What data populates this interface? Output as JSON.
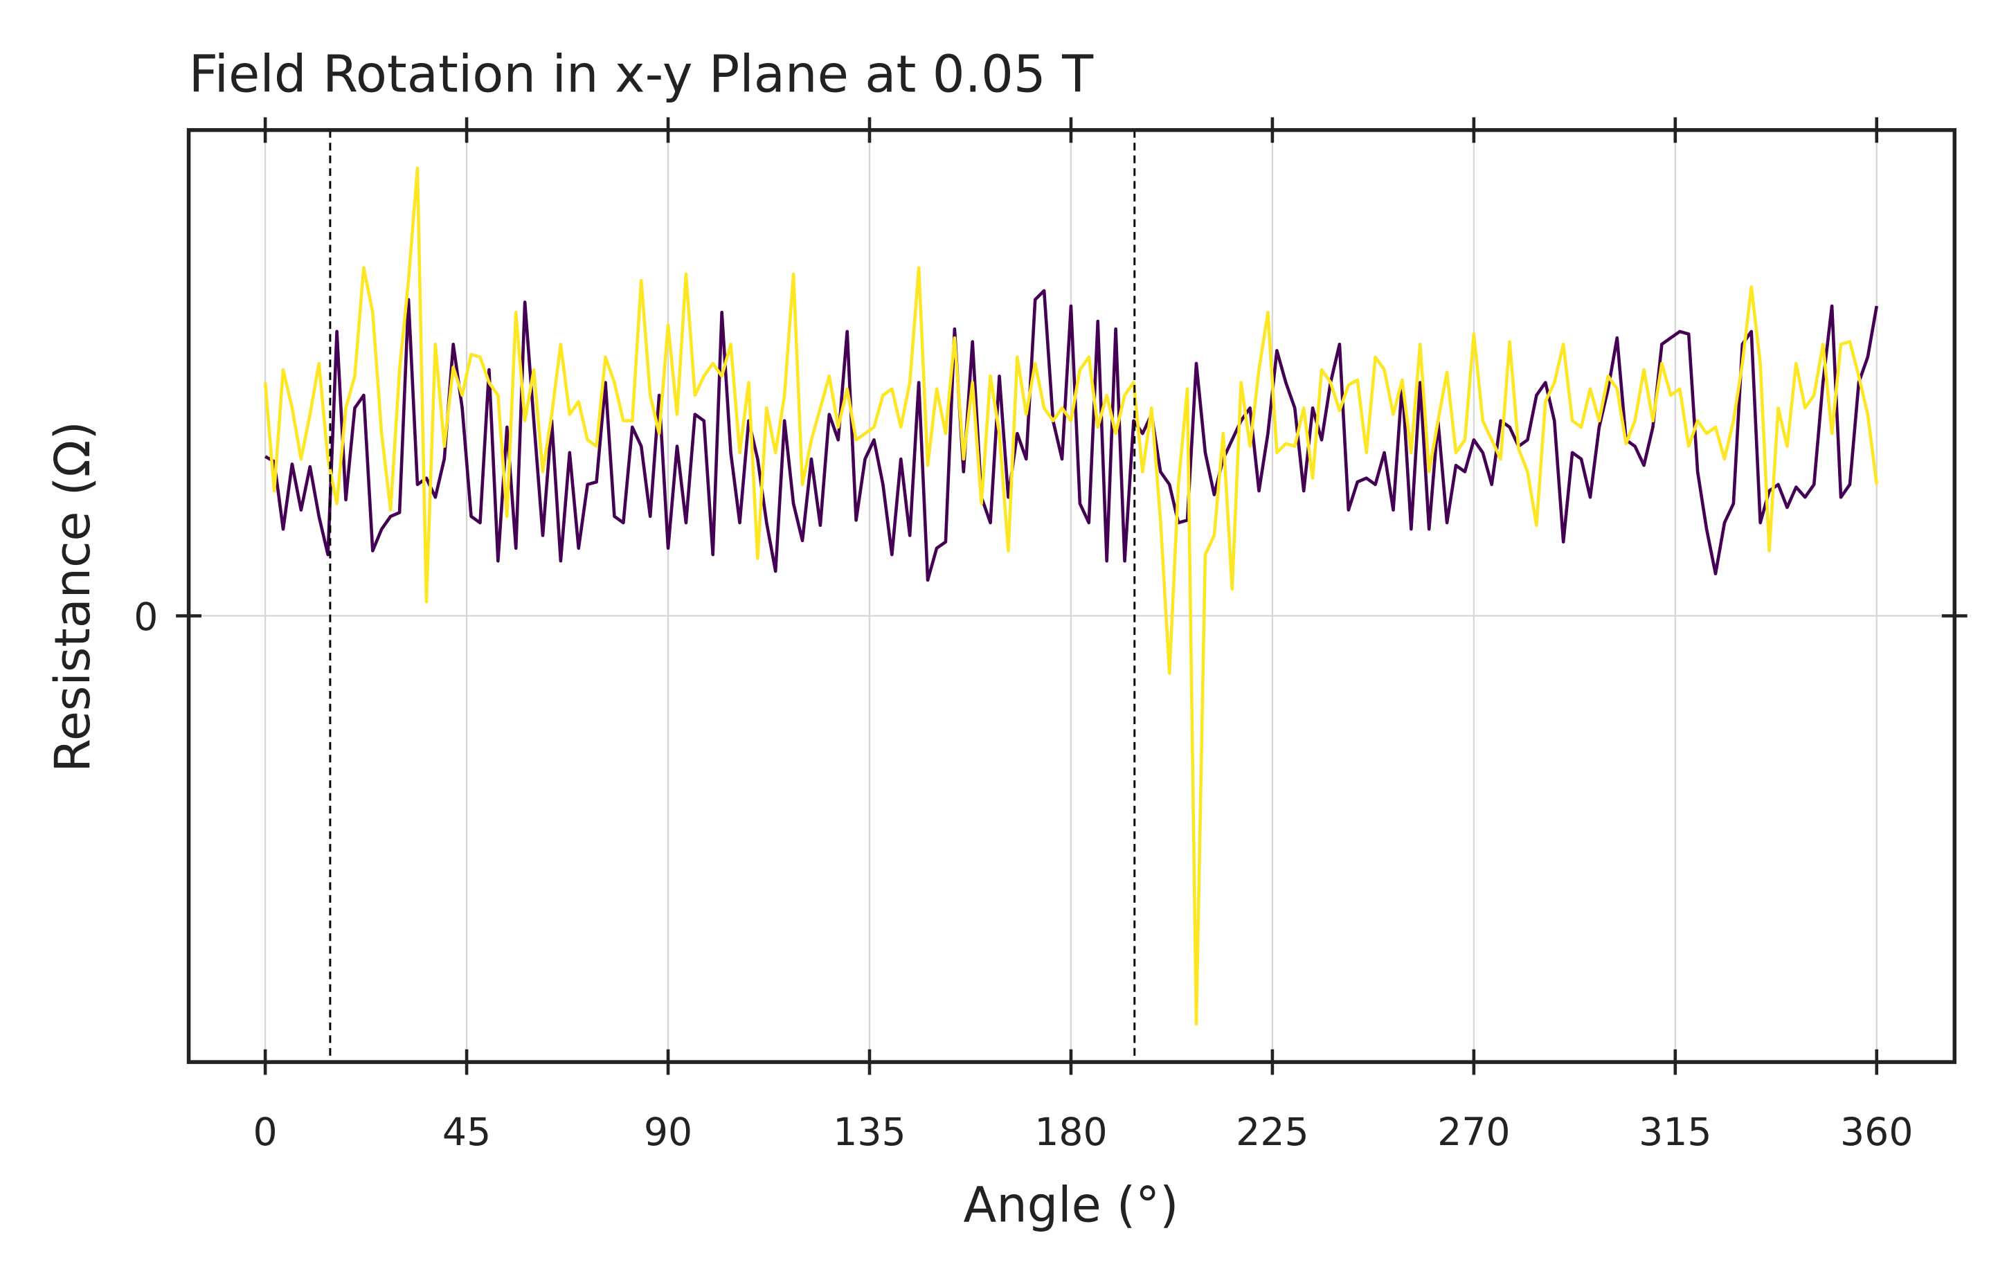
{
  "chart_data": {
    "type": "line",
    "title": "Field Rotation in x-y Plane at 0.05 T",
    "xlabel": "Angle (°)",
    "ylabel": "Resistance (Ω)",
    "xlim": [
      -17.1,
      377.4
    ],
    "ylim": [
      -3.5,
      3.81
    ],
    "xticks": [
      0,
      45,
      90,
      135,
      180,
      225,
      270,
      315,
      360
    ],
    "yticks": [
      0
    ],
    "grid": true,
    "vlines": [
      14.5,
      194.2
    ],
    "x": [
      0,
      2,
      4,
      6,
      8,
      10,
      12,
      14,
      16,
      18,
      20,
      22,
      24,
      26,
      28,
      30,
      32,
      34,
      36,
      38,
      40,
      42,
      44,
      46,
      48,
      50,
      52,
      54,
      56,
      58,
      60,
      62,
      64,
      66,
      68,
      70,
      72,
      74,
      76,
      78,
      80,
      82,
      84,
      86,
      88,
      90,
      92,
      94,
      96,
      98,
      100,
      102,
      104,
      106,
      108,
      110,
      112,
      114,
      116,
      118,
      120,
      122,
      124,
      126,
      128,
      130,
      132,
      134,
      136,
      138,
      140,
      142,
      144,
      146,
      148,
      150,
      152,
      154,
      156,
      158,
      160,
      162,
      164,
      166,
      168,
      170,
      172,
      174,
      176,
      178,
      180,
      182,
      184,
      186,
      188,
      190,
      192,
      194,
      196,
      198,
      200,
      202,
      204,
      206,
      208,
      210,
      212,
      214,
      216,
      218,
      220,
      222,
      224,
      226,
      228,
      230,
      232,
      234,
      236,
      238,
      240,
      242,
      244,
      246,
      248,
      250,
      252,
      254,
      256,
      258,
      260,
      262,
      264,
      266,
      268,
      270,
      272,
      274,
      276,
      278,
      280,
      282,
      284,
      286,
      288,
      290,
      292,
      294,
      296,
      298,
      300,
      302,
      304,
      306,
      308,
      310,
      312,
      314,
      316,
      318,
      320,
      322,
      324,
      326,
      328,
      330,
      332,
      334,
      336,
      338,
      340,
      342,
      344,
      346,
      348,
      350,
      352,
      354,
      356,
      358,
      360
    ],
    "series": [
      {
        "color": "#440154",
        "values": [
          1.25,
          1.21,
          0.68,
          1.19,
          0.83,
          1.17,
          0.78,
          0.48,
          2.23,
          0.91,
          1.63,
          1.73,
          0.51,
          0.68,
          0.78,
          0.81,
          2.48,
          1.03,
          1.08,
          0.93,
          1.23,
          2.13,
          1.63,
          0.78,
          0.73,
          1.93,
          0.43,
          1.48,
          0.53,
          2.46,
          1.53,
          0.63,
          1.53,
          0.43,
          1.28,
          0.53,
          1.03,
          1.05,
          1.83,
          0.78,
          0.73,
          1.48,
          1.33,
          0.78,
          1.73,
          0.53,
          1.33,
          0.73,
          1.58,
          1.53,
          0.48,
          2.38,
          1.28,
          0.73,
          1.53,
          1.23,
          0.73,
          0.35,
          1.53,
          0.88,
          0.59,
          1.23,
          0.71,
          1.58,
          1.38,
          2.23,
          0.75,
          1.23,
          1.38,
          1.03,
          0.48,
          1.23,
          0.63,
          1.83,
          0.28,
          0.53,
          0.58,
          2.25,
          1.13,
          2.15,
          0.93,
          0.73,
          1.88,
          0.93,
          1.43,
          1.23,
          2.48,
          2.55,
          1.53,
          1.23,
          2.43,
          0.88,
          0.73,
          2.31,
          0.43,
          2.25,
          0.43,
          1.53,
          1.43,
          1.58,
          1.13,
          1.03,
          0.73,
          0.75,
          1.98,
          1.28,
          0.95,
          1.23,
          1.38,
          1.53,
          1.63,
          0.98,
          1.43,
          2.08,
          1.83,
          1.63,
          0.98,
          1.63,
          1.38,
          1.83,
          2.13,
          0.83,
          1.05,
          1.08,
          1.03,
          1.28,
          0.83,
          1.83,
          0.68,
          1.83,
          0.68,
          1.53,
          0.73,
          1.18,
          1.13,
          1.38,
          1.28,
          1.03,
          1.53,
          1.48,
          1.33,
          1.38,
          1.73,
          1.83,
          1.53,
          0.58,
          1.28,
          1.23,
          0.93,
          1.48,
          1.78,
          2.18,
          1.38,
          1.33,
          1.18,
          1.48,
          2.13,
          2.18,
          2.23,
          2.21,
          1.13,
          0.68,
          0.33,
          0.73,
          0.88,
          2.13,
          2.23,
          0.73,
          0.98,
          1.03,
          0.85,
          1.01,
          0.93,
          1.03,
          1.83,
          2.43,
          0.93,
          1.03,
          1.83,
          2.03,
          2.43
        ]
      },
      {
        "color": "#fde725",
        "values": [
          1.83,
          0.98,
          1.93,
          1.63,
          1.23,
          1.58,
          1.98,
          1.23,
          0.88,
          1.63,
          1.88,
          2.73,
          2.38,
          1.43,
          0.83,
          1.93,
          2.63,
          3.51,
          0.11,
          2.13,
          1.33,
          1.95,
          1.73,
          2.05,
          2.03,
          1.83,
          1.73,
          0.78,
          2.38,
          1.53,
          1.93,
          1.13,
          1.58,
          2.13,
          1.58,
          1.68,
          1.38,
          1.33,
          2.03,
          1.83,
          1.53,
          1.53,
          2.63,
          1.73,
          1.43,
          2.28,
          1.58,
          2.68,
          1.73,
          1.88,
          1.98,
          1.88,
          2.13,
          1.28,
          1.83,
          0.45,
          1.63,
          1.28,
          1.73,
          2.68,
          1.03,
          1.38,
          1.63,
          1.88,
          1.48,
          1.78,
          1.38,
          1.43,
          1.48,
          1.73,
          1.78,
          1.48,
          1.83,
          2.73,
          1.18,
          1.78,
          1.43,
          2.18,
          1.23,
          1.83,
          0.88,
          1.88,
          1.43,
          0.51,
          2.03,
          1.58,
          1.98,
          1.63,
          1.53,
          1.63,
          1.53,
          1.93,
          2.03,
          1.48,
          1.73,
          1.43,
          1.73,
          1.83,
          1.13,
          1.63,
          0.75,
          -0.45,
          1.03,
          1.78,
          -3.2,
          0.48,
          0.63,
          1.43,
          0.21,
          1.83,
          1.33,
          1.93,
          2.38,
          1.28,
          1.35,
          1.33,
          1.63,
          1.08,
          1.93,
          1.83,
          1.61,
          1.81,
          1.85,
          1.28,
          2.03,
          1.93,
          1.58,
          1.85,
          1.28,
          2.13,
          1.13,
          1.53,
          1.91,
          1.28,
          1.38,
          2.21,
          1.53,
          1.38,
          1.23,
          2.15,
          1.31,
          1.13,
          0.71,
          1.68,
          1.83,
          2.13,
          1.53,
          1.48,
          1.78,
          1.53,
          1.88,
          1.78,
          1.35,
          1.53,
          1.93,
          1.53,
          1.98,
          1.73,
          1.78,
          1.33,
          1.53,
          1.43,
          1.48,
          1.23,
          1.53,
          1.98,
          2.58,
          1.98,
          0.51,
          1.63,
          1.33,
          1.98,
          1.63,
          1.73,
          2.13,
          1.43,
          2.13,
          2.15,
          1.88,
          1.58,
          1.03
        ]
      }
    ]
  }
}
